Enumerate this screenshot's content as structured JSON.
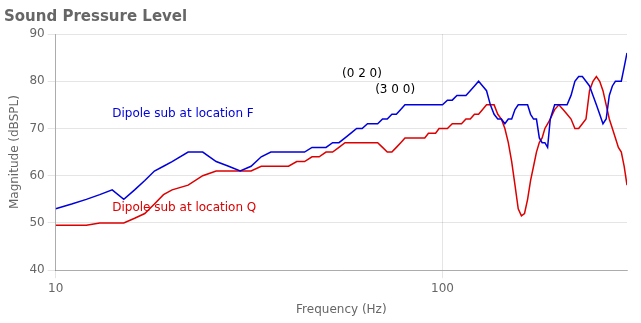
{
  "chart_data": {
    "type": "line",
    "title": "Sound Pressure Level",
    "x_label": "Frequency (Hz)",
    "y_label": "Magnitude (dBSPL)",
    "log": "x",
    "grid": true,
    "xlim": [
      10,
      300
    ],
    "xticks": [
      10,
      100
    ],
    "ylim": [
      40,
      90
    ],
    "yticks": [
      40,
      50,
      60,
      70,
      80,
      90
    ],
    "x": [
      10,
      11,
      12,
      13,
      14,
      15,
      16,
      17,
      18,
      19,
      20,
      22,
      24,
      26,
      28,
      30,
      32,
      34,
      36,
      38,
      40,
      42,
      44,
      46,
      48,
      50,
      52,
      54,
      56,
      58,
      60,
      62,
      64,
      66,
      68,
      70,
      72,
      74,
      76,
      78,
      80,
      82,
      84,
      86,
      88,
      90,
      92,
      94,
      96,
      98,
      100,
      103,
      106,
      109,
      112,
      115,
      118,
      121,
      124,
      127,
      130,
      133,
      136,
      139,
      142,
      145,
      148,
      151,
      154,
      157,
      160,
      163,
      166,
      169,
      172,
      175,
      178,
      181,
      184,
      187,
      190,
      195,
      200,
      205,
      210,
      215,
      220,
      225,
      230,
      235,
      240,
      245,
      250,
      255,
      260,
      265,
      270,
      275,
      280,
      285,
      290,
      295,
      300
    ],
    "series": [
      {
        "color": "#0000dd",
        "values": [
          53,
          54,
          55,
          56,
          57,
          55,
          57,
          59,
          61,
          62,
          63,
          65,
          65,
          63,
          62,
          61,
          62,
          64,
          65,
          65,
          65,
          65,
          65,
          66,
          66,
          66,
          67,
          67,
          68,
          69,
          70,
          70,
          71,
          71,
          71,
          72,
          72,
          73,
          73,
          74,
          75,
          75,
          75,
          75,
          75,
          75,
          75,
          75,
          75,
          75,
          75,
          76,
          76,
          77,
          77,
          77,
          78,
          79,
          80,
          79,
          78,
          75,
          73,
          72,
          72,
          71,
          72,
          72,
          74,
          75,
          75,
          75,
          75,
          73,
          72,
          72,
          68,
          67,
          67,
          66,
          72,
          75,
          75,
          75,
          75,
          77,
          80,
          81,
          81,
          80,
          79,
          77,
          75,
          73,
          71,
          72,
          77,
          79,
          80,
          80,
          80,
          83,
          86
        ]
      },
      {
        "color": "#dd0000",
        "values": [
          49.5,
          49.5,
          49.5,
          50,
          50,
          50,
          51,
          52,
          54,
          56,
          57,
          58,
          60,
          61,
          61,
          61,
          61,
          62,
          62,
          62,
          62,
          63,
          63,
          64,
          64,
          65,
          65,
          66,
          67,
          67,
          67,
          67,
          67,
          67,
          67,
          66,
          65,
          65,
          66,
          67,
          68,
          68,
          68,
          68,
          68,
          68,
          69,
          69,
          69,
          70,
          70,
          70,
          71,
          71,
          71,
          72,
          72,
          73,
          73,
          74,
          75,
          75,
          75,
          73,
          72,
          70,
          67,
          63,
          58,
          53,
          51.5,
          52,
          55,
          59,
          62,
          65,
          67,
          68,
          70,
          71,
          72,
          74,
          75,
          74,
          73,
          72,
          70,
          70,
          71,
          72,
          78,
          80,
          81,
          80,
          78,
          75,
          72,
          70,
          68,
          66,
          65,
          62,
          58
        ]
      }
    ],
    "annotations": [
      {
        "text": "(0 2 0)",
        "x": 55,
        "y": 81,
        "color": "#000000"
      },
      {
        "text": "(3 0 0)",
        "x": 67,
        "y": 77.5,
        "color": "#000000"
      },
      {
        "text": "Dipole sub at location F",
        "x": 14,
        "y": 72.5,
        "color": "#0000dd"
      },
      {
        "text": "Dipole sub at location Q",
        "x": 14,
        "y": 52.5,
        "color": "#dd0000"
      }
    ]
  }
}
